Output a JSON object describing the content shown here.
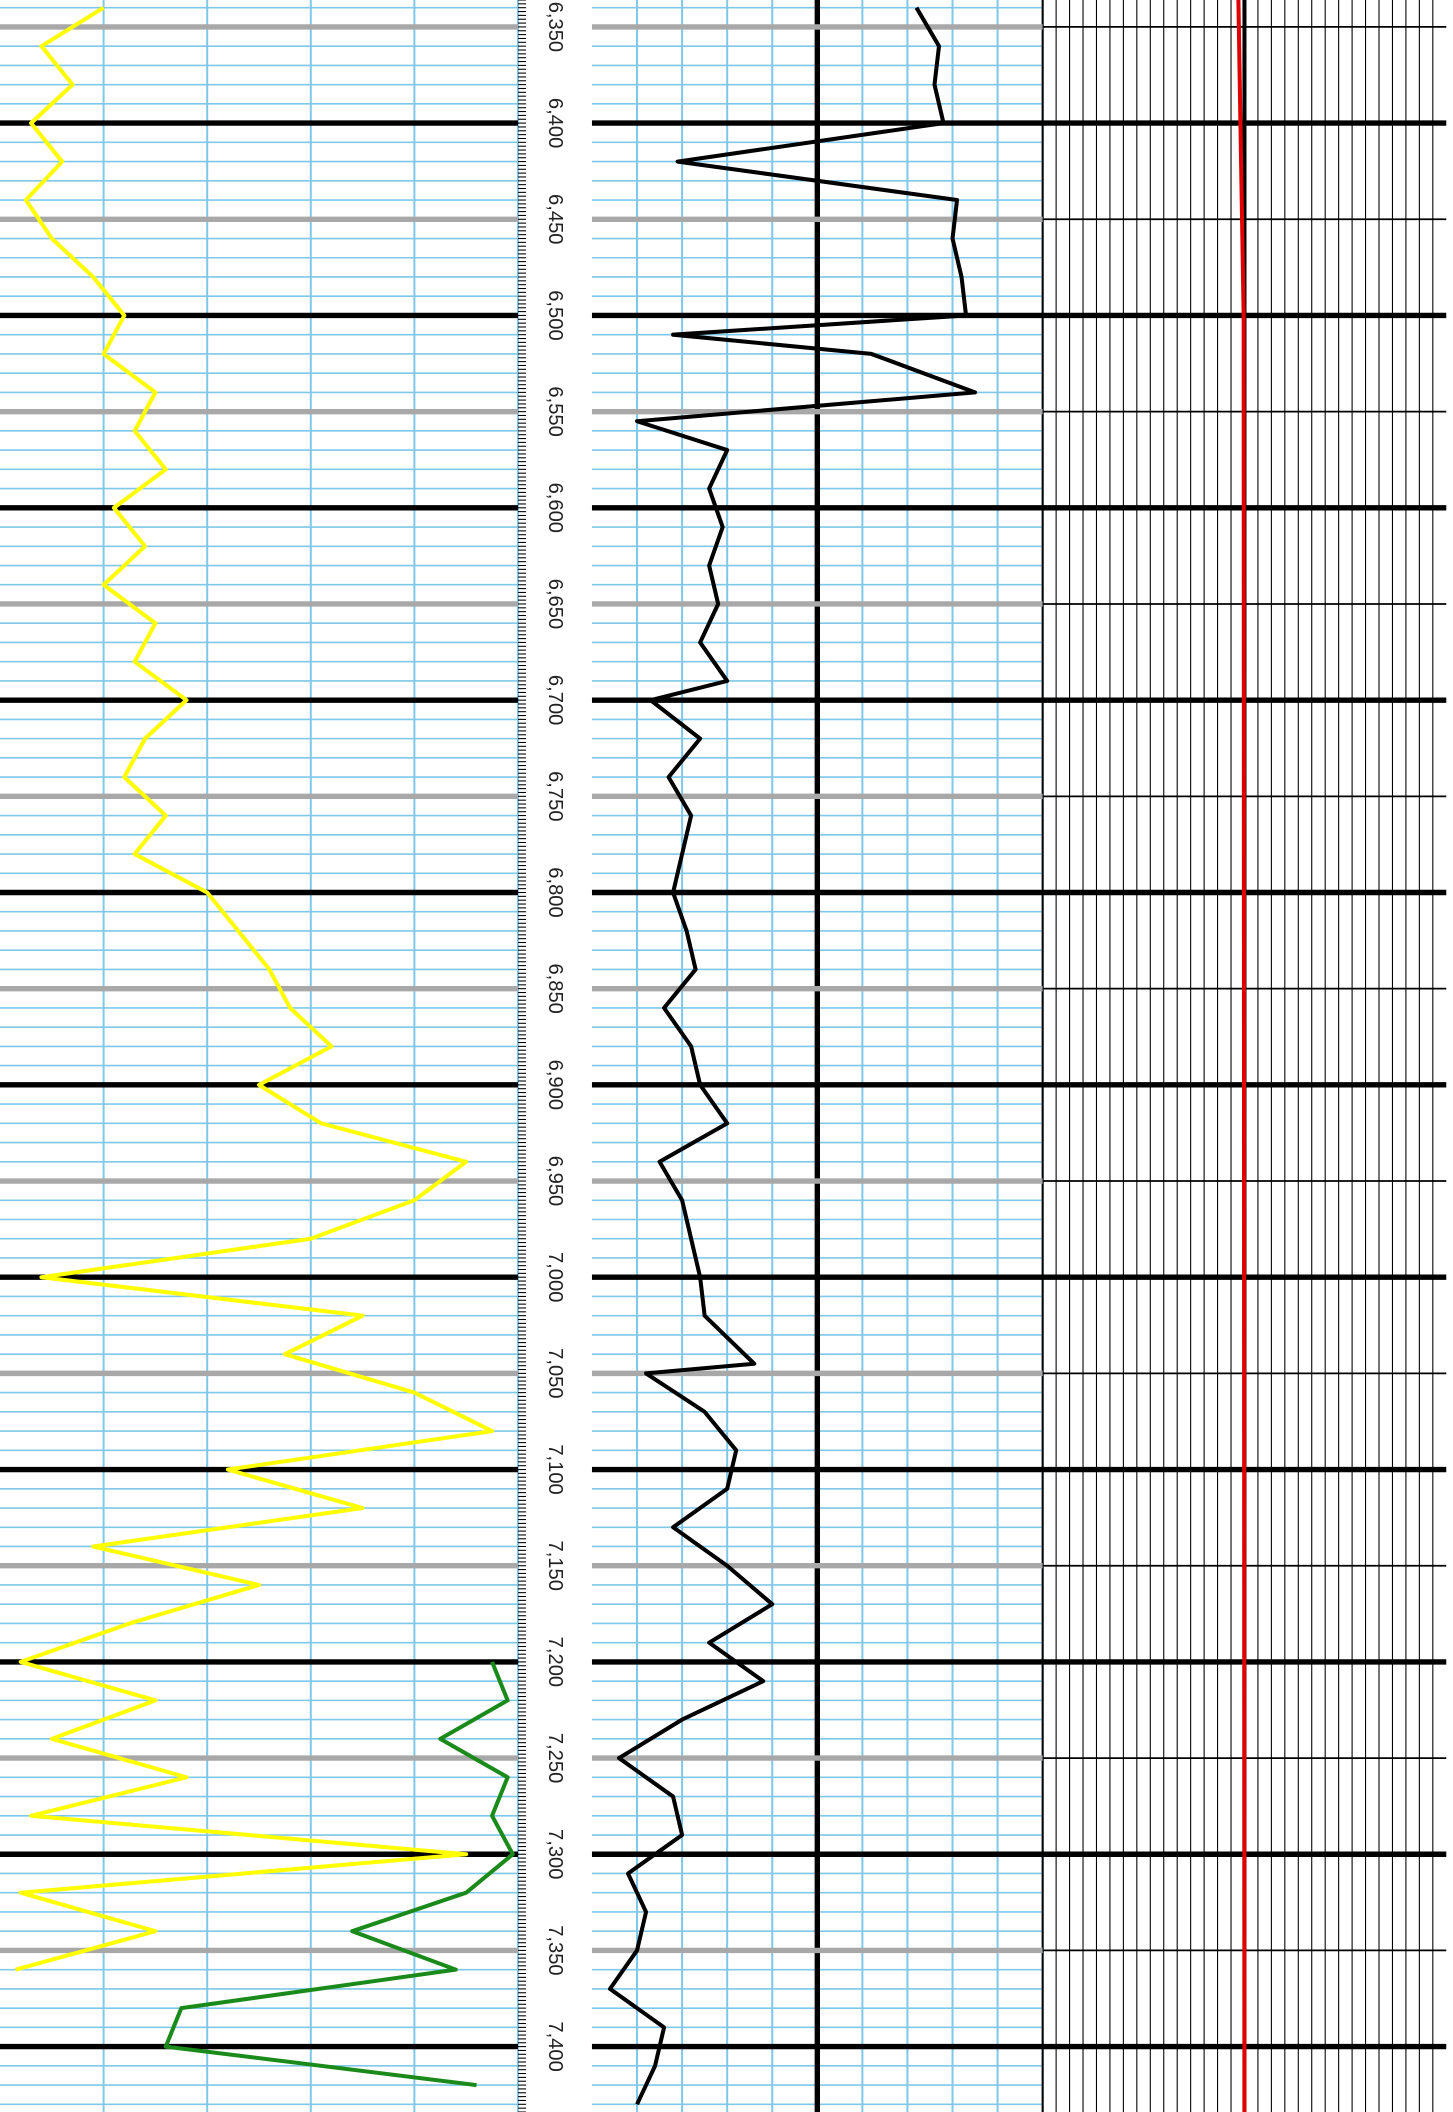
{
  "chart_data": {
    "type": "well-log",
    "ylim": [
      6336,
      7434
    ],
    "xlim": [
      0,
      100
    ],
    "yticks": [
      {
        "value": 6350,
        "label": "6,350"
      },
      {
        "value": 6400,
        "label": "6,400"
      },
      {
        "value": 6450,
        "label": "6,450"
      },
      {
        "value": 6500,
        "label": "6,500"
      },
      {
        "value": 6550,
        "label": "6,550"
      },
      {
        "value": 6600,
        "label": "6,600"
      },
      {
        "value": 6650,
        "label": "6,650"
      },
      {
        "value": 6700,
        "label": "6,700"
      },
      {
        "value": 6750,
        "label": "6,750"
      },
      {
        "value": 6800,
        "label": "6,800"
      },
      {
        "value": 6850,
        "label": "6,850"
      },
      {
        "value": 6900,
        "label": "6,900"
      },
      {
        "value": 6950,
        "label": "6,950"
      },
      {
        "value": 7000,
        "label": "7,000"
      },
      {
        "value": 7050,
        "label": "7,050"
      },
      {
        "value": 7100,
        "label": "7,100"
      },
      {
        "value": 7150,
        "label": "7,150"
      },
      {
        "value": 7200,
        "label": "7,200"
      },
      {
        "value": 7250,
        "label": "7,250"
      },
      {
        "value": 7300,
        "label": "7,300"
      },
      {
        "value": 7350,
        "label": "7,350"
      },
      {
        "value": 7400,
        "label": "7,400"
      }
    ],
    "tracks": [
      {
        "curves": [
          {
            "color": "#ffff00",
            "depth": [
              6340,
              6360,
              6380,
              6400,
              6420,
              6440,
              6460,
              6480,
              6500,
              6520,
              6540,
              6560,
              6580,
              6600,
              6620,
              6640,
              6660,
              6680,
              6700,
              6720,
              6740,
              6760,
              6780,
              6800,
              6820,
              6840,
              6860,
              6880,
              6900,
              6920,
              6940,
              6960,
              6980,
              7000,
              7020,
              7040,
              7060,
              7080,
              7100,
              7120,
              7140,
              7160,
              7180,
              7200,
              7220,
              7240,
              7260,
              7280,
              7300,
              7320,
              7340,
              7360
            ],
            "values": [
              20,
              8,
              14,
              6,
              12,
              5,
              10,
              18,
              24,
              20,
              30,
              26,
              32,
              22,
              28,
              20,
              30,
              26,
              36,
              28,
              24,
              32,
              26,
              40,
              46,
              52,
              56,
              64,
              50,
              62,
              90,
              80,
              60,
              8,
              70,
              55,
              80,
              95,
              44,
              70,
              18,
              50,
              25,
              4,
              30,
              10,
              36,
              6,
              90,
              4,
              30,
              3
            ]
          },
          {
            "color": "#1a8a1a",
            "depth": [
              7200,
              7220,
              7240,
              7260,
              7280,
              7300,
              7320,
              7340,
              7360,
              7380,
              7400,
              7420
            ],
            "values": [
              95,
              98,
              85,
              98,
              95,
              99,
              90,
              68,
              88,
              35,
              32,
              92
            ]
          }
        ]
      },
      {
        "curves": [
          {
            "color": "#000000",
            "depth": [
              6340,
              6360,
              6380,
              6400,
              6420,
              6440,
              6460,
              6480,
              6500,
              6510,
              6520,
              6540,
              6555,
              6570,
              6590,
              6610,
              6630,
              6650,
              6670,
              6690,
              6700,
              6720,
              6740,
              6760,
              6780,
              6800,
              6820,
              6840,
              6860,
              6880,
              6900,
              6920,
              6940,
              6960,
              6980,
              7000,
              7020,
              7045,
              7050,
              7070,
              7090,
              7110,
              7130,
              7150,
              7170,
              7190,
              7210,
              7230,
              7250,
              7270,
              7290,
              7310,
              7330,
              7350,
              7370,
              7390,
              7410,
              7430
            ],
            "values": [
              72,
              77,
              76,
              78,
              19,
              81,
              80,
              82,
              83,
              18,
              62,
              85,
              10,
              30,
              26,
              29,
              26,
              28,
              24,
              30,
              13,
              24,
              17,
              22,
              20,
              18,
              21,
              23,
              16,
              22,
              24,
              30,
              15,
              20,
              22,
              24,
              25,
              36,
              12,
              25,
              32,
              30,
              18,
              30,
              40,
              26,
              38,
              20,
              6,
              18,
              20,
              8,
              12,
              10,
              4,
              16,
              14,
              10
            ]
          }
        ]
      },
      {
        "curves": [
          {
            "color": "#e00000",
            "depth": [
              6336,
              6400,
              6500,
              7434
            ],
            "values": [
              48.5,
              49,
              49.8,
              50
            ]
          }
        ]
      }
    ]
  }
}
